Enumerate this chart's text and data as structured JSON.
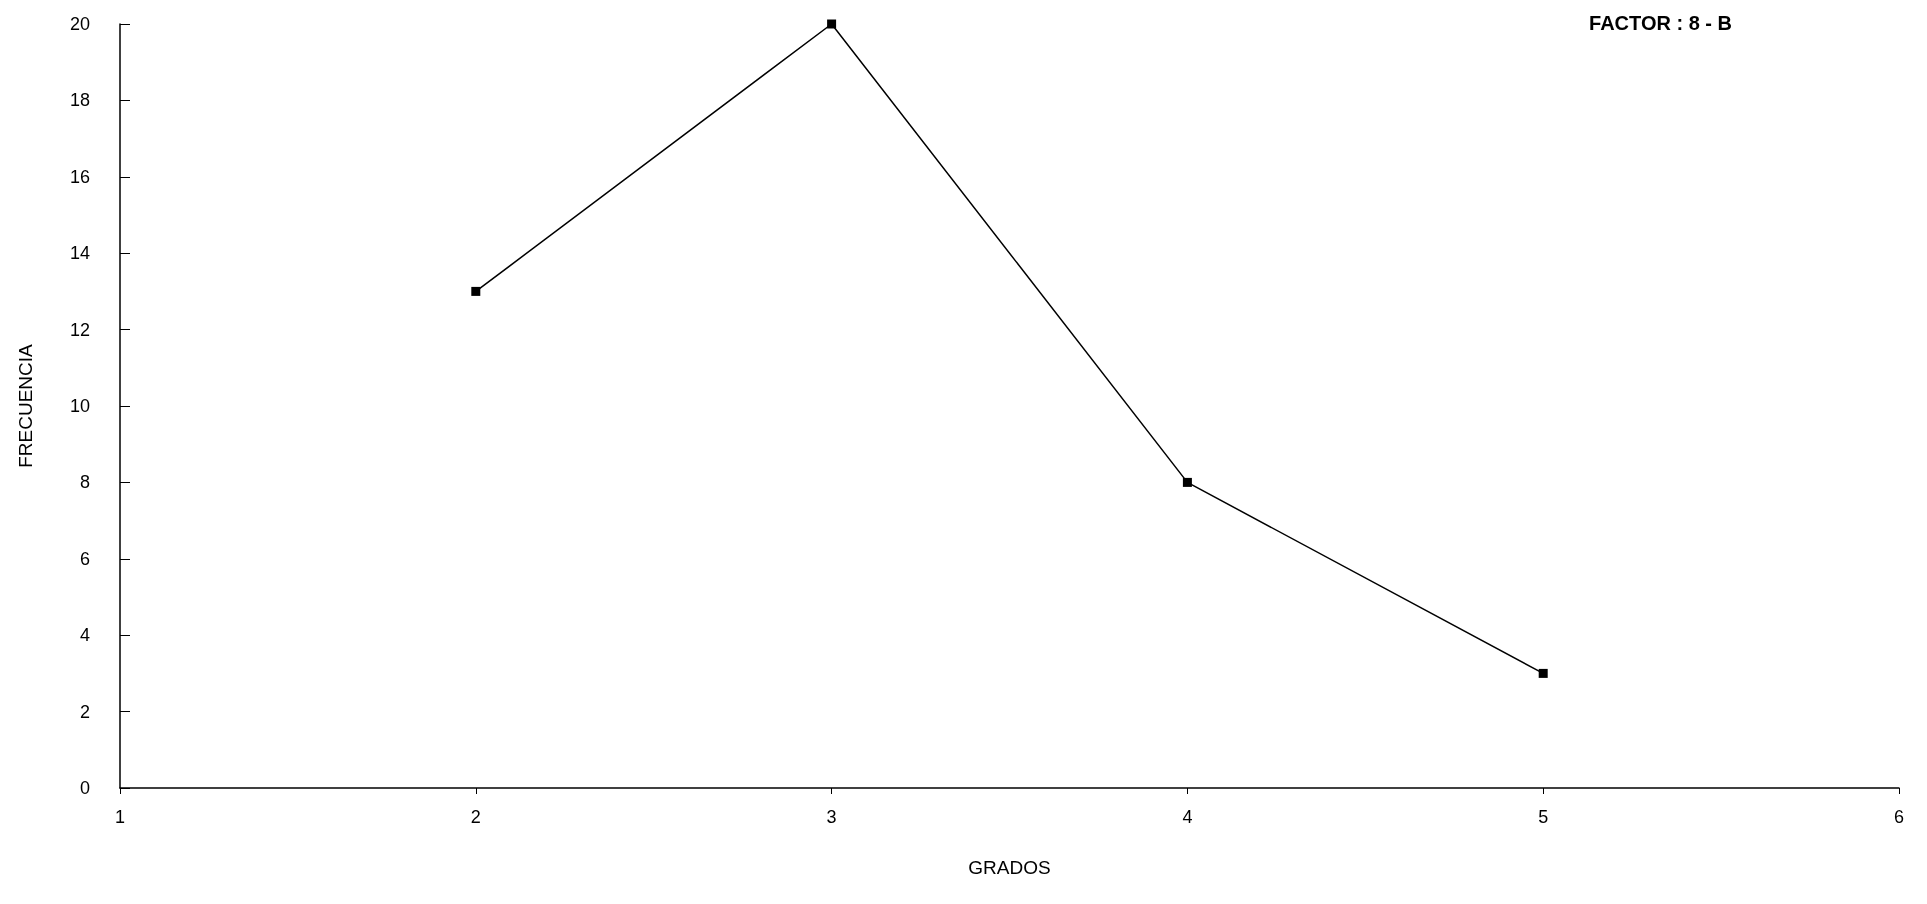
{
  "chart_data": {
    "type": "line",
    "title": "FACTOR : 8 - B",
    "xlabel": "GRADOS",
    "ylabel": "FRECUENCIA",
    "x": [
      2,
      3,
      4,
      5
    ],
    "series": [
      {
        "color": "#000000",
        "values": [
          13,
          20,
          8,
          3
        ]
      }
    ],
    "xlim": [
      1,
      6
    ],
    "xticks": [
      1,
      2,
      3,
      4,
      5,
      6
    ],
    "ylim": [
      0,
      20
    ],
    "yticks": [
      0,
      2,
      4,
      6,
      8,
      10,
      12,
      14,
      16,
      18,
      20
    ],
    "grid": false,
    "marker": "square",
    "line_style": "solid"
  }
}
